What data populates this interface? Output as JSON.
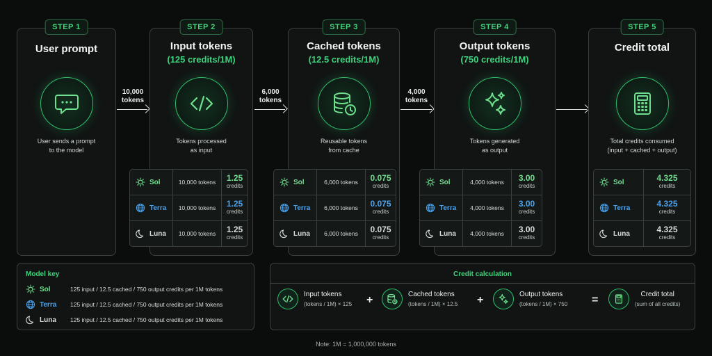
{
  "colors": {
    "accent": "#3fd27d",
    "sol": "#6fe08e",
    "terra": "#4aa3f0",
    "luna": "#d8dcda",
    "background": "#0b0d0c"
  },
  "steps": [
    {
      "step": "STEP 1",
      "title": "User prompt",
      "rate": "",
      "desc_line1": "User sends a prompt",
      "desc_line2": "to the model",
      "icon": "chat-bubble-icon"
    },
    {
      "step": "STEP 2",
      "title": "Input tokens",
      "rate": "(125 credits/1M)",
      "desc_line1": "Tokens processed",
      "desc_line2": "as input",
      "icon": "code-icon",
      "rows": [
        {
          "model": "Sol",
          "tokens": "10,000 tokens",
          "credits": "1.25",
          "unit": "credits"
        },
        {
          "model": "Terra",
          "tokens": "10,000 tokens",
          "credits": "1.25",
          "unit": "credits"
        },
        {
          "model": "Luna",
          "tokens": "10,000 tokens",
          "credits": "1.25",
          "unit": "credits"
        }
      ]
    },
    {
      "step": "STEP 3",
      "title": "Cached tokens",
      "rate": "(12.5 credits/1M)",
      "desc_line1": "Reusable tokens",
      "desc_line2": "from cache",
      "icon": "database-clock-icon",
      "rows": [
        {
          "model": "Sol",
          "tokens": "6,000 tokens",
          "credits": "0.075",
          "unit": "credits"
        },
        {
          "model": "Terra",
          "tokens": "6,000 tokens",
          "credits": "0.075",
          "unit": "credits"
        },
        {
          "model": "Luna",
          "tokens": "6,000 tokens",
          "credits": "0.075",
          "unit": "credits"
        }
      ]
    },
    {
      "step": "STEP 4",
      "title": "Output tokens",
      "rate": "(750 credits/1M)",
      "desc_line1": "Tokens generated",
      "desc_line2": "as output",
      "icon": "sparkles-icon",
      "rows": [
        {
          "model": "Sol",
          "tokens": "4,000 tokens",
          "credits": "3.00",
          "unit": "credits"
        },
        {
          "model": "Terra",
          "tokens": "4,000 tokens",
          "credits": "3.00",
          "unit": "credits"
        },
        {
          "model": "Luna",
          "tokens": "4,000 tokens",
          "credits": "3.00",
          "unit": "credits"
        }
      ]
    },
    {
      "step": "STEP 5",
      "title": "Credit total",
      "rate": "",
      "desc_line1": "Total credits consumed",
      "desc_line2": "(input + cached + output)",
      "icon": "calculator-icon",
      "rows": [
        {
          "model": "Sol",
          "credits": "4.325",
          "unit": "credits"
        },
        {
          "model": "Terra",
          "credits": "4.325",
          "unit": "credits"
        },
        {
          "model": "Luna",
          "credits": "4.325",
          "unit": "credits"
        }
      ]
    }
  ],
  "flows": [
    {
      "line1": "10,000",
      "line2": "tokens"
    },
    {
      "line1": "6,000",
      "line2": "tokens"
    },
    {
      "line1": "4,000",
      "line2": "tokens"
    }
  ],
  "model_key": {
    "title": "Model key",
    "items": [
      {
        "name": "Sol",
        "desc": "125 input  /  12.5 cached  /  750 output credits per 1M tokens"
      },
      {
        "name": "Terra",
        "desc": "125 input  /  12.5 cached  /  750 output credits per 1M tokens"
      },
      {
        "name": "Luna",
        "desc": "125 input  /  12.5 cached  /  750 output credits per 1M tokens"
      }
    ]
  },
  "calculation": {
    "title": "Credit calculation",
    "items": [
      {
        "title": "Input tokens",
        "sub": "(tokens / 1M) × 125",
        "icon": "code-icon"
      },
      {
        "title": "Cached tokens",
        "sub": "(tokens / 1M) × 12.5",
        "icon": "database-clock-icon"
      },
      {
        "title": "Output tokens",
        "sub": "(tokens / 1M) × 750",
        "icon": "sparkles-icon"
      },
      {
        "title": "Credit total",
        "sub": "(sum of all credits)",
        "icon": "calculator-icon"
      }
    ],
    "ops": [
      "+",
      "+",
      "="
    ]
  },
  "note": "Note: 1M = 1,000,000 tokens"
}
